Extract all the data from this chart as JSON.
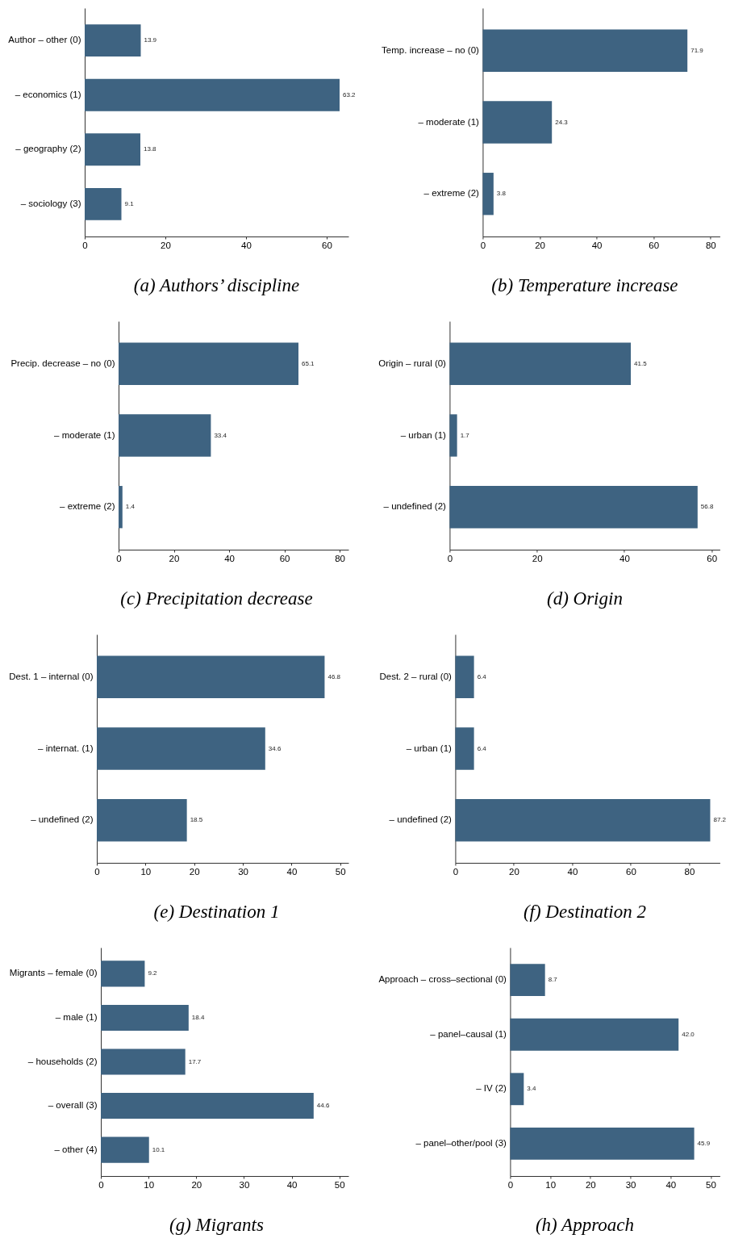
{
  "chart_data": [
    {
      "type": "bar",
      "orientation": "horizontal",
      "title": "(a) Authors’ discipline",
      "categories": [
        "Author – other (0)",
        "– economics (1)",
        "– geography (2)",
        "– sociology (3)"
      ],
      "values": [
        13.9,
        63.2,
        13.8,
        9.1
      ],
      "value_labels": [
        "13.9",
        "63.2",
        "13.8",
        "9.1"
      ],
      "color": "#3e6381",
      "xlim": [
        0,
        65.4
      ],
      "xticks": [
        0,
        20,
        40,
        60
      ]
    },
    {
      "type": "bar",
      "orientation": "horizontal",
      "title": "(b) Temperature increase",
      "categories": [
        "Temp. increase – no (0)",
        "– moderate (1)",
        "– extreme (2)"
      ],
      "values": [
        71.9,
        24.3,
        3.8
      ],
      "value_labels": [
        "71.9",
        "24.3",
        "3.8"
      ],
      "color": "#3e6381",
      "xlim": [
        0,
        83.3
      ],
      "xticks": [
        0,
        20,
        40,
        60,
        80
      ]
    },
    {
      "type": "bar",
      "orientation": "horizontal",
      "title": "(c) Precipitation decrease",
      "categories": [
        "Precip. decrease – no (0)",
        "– moderate (1)",
        "– extreme (2)"
      ],
      "values": [
        65.1,
        33.4,
        1.4
      ],
      "value_labels": [
        "65.1",
        "33.4",
        "1.4"
      ],
      "color": "#3e6381",
      "xlim": [
        0,
        83.2
      ],
      "xticks": [
        0,
        20,
        40,
        60,
        80
      ]
    },
    {
      "type": "bar",
      "orientation": "horizontal",
      "title": "(d) Origin",
      "categories": [
        "Origin – rural (0)",
        "– urban (1)",
        "– undefined (2)"
      ],
      "values": [
        41.5,
        1.7,
        56.8
      ],
      "value_labels": [
        "41.5",
        "1.7",
        "56.8"
      ],
      "color": "#3e6381",
      "xlim": [
        0,
        61.9
      ],
      "xticks": [
        0,
        20,
        40,
        60
      ]
    },
    {
      "type": "bar",
      "orientation": "horizontal",
      "title": "(e) Destination 1",
      "categories": [
        "Dest. 1 – internal (0)",
        "– internat. (1)",
        "– undefined (2)"
      ],
      "values": [
        46.8,
        34.6,
        18.5
      ],
      "value_labels": [
        "46.8",
        "34.6",
        "18.5"
      ],
      "color": "#3e6381",
      "xlim": [
        0,
        51.7
      ],
      "xticks": [
        0,
        10,
        20,
        30,
        40,
        50
      ]
    },
    {
      "type": "bar",
      "orientation": "horizontal",
      "title": "(f) Destination 2",
      "categories": [
        "Dest. 2 – rural (0)",
        "– urban (1)",
        "– undefined (2)"
      ],
      "values": [
        6.4,
        6.4,
        87.2
      ],
      "value_labels": [
        "6.4",
        "6.4",
        "87.2"
      ],
      "color": "#3e6381",
      "xlim": [
        0,
        90.5
      ],
      "xticks": [
        0,
        20,
        40,
        60,
        80
      ]
    },
    {
      "type": "bar",
      "orientation": "horizontal",
      "title": "(g) Migrants",
      "categories": [
        "Migrants – female (0)",
        "– male (1)",
        "– households (2)",
        "– overall (3)",
        "– other (4)"
      ],
      "values": [
        9.2,
        18.4,
        17.7,
        44.6,
        10.1
      ],
      "value_labels": [
        "9.2",
        "18.4",
        "17.7",
        "44.6",
        "10.1"
      ],
      "color": "#3e6381",
      "xlim": [
        0,
        51.9
      ],
      "xticks": [
        0,
        10,
        20,
        30,
        40,
        50
      ]
    },
    {
      "type": "bar",
      "orientation": "horizontal",
      "title": "(h) Approach",
      "categories": [
        "Approach – cross–sectional (0)",
        "– panel–causal (1)",
        "– IV (2)",
        "– panel–other/pool (3)"
      ],
      "values": [
        8.7,
        42.0,
        3.4,
        45.9
      ],
      "value_labels": [
        "8.7",
        "42.0",
        "3.4",
        "45.9"
      ],
      "color": "#3e6381",
      "xlim": [
        0,
        52.3
      ],
      "xticks": [
        0,
        10,
        20,
        30,
        40,
        50
      ]
    }
  ]
}
